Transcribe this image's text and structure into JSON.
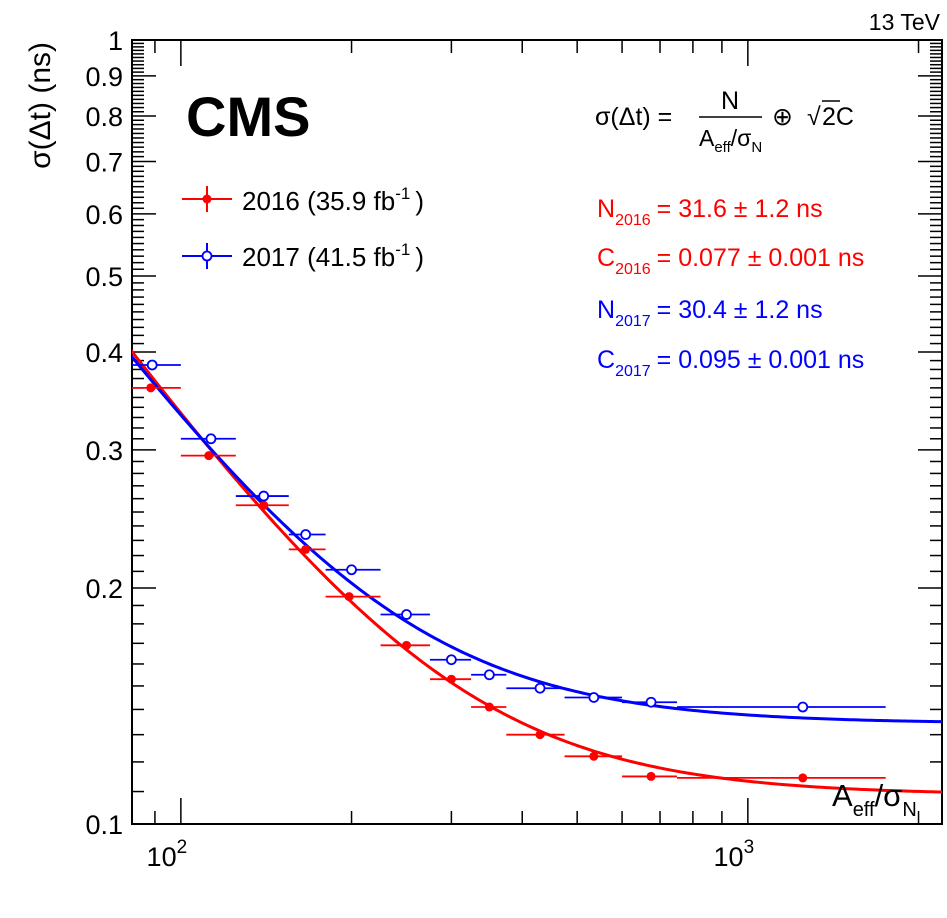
{
  "chart_data": {
    "type": "scatter",
    "title": "",
    "energy_label": "13 TeV",
    "experiment_label": "CMS",
    "xlabel": {
      "main": "A",
      "sub1": "eff",
      "mid": "/σ",
      "sub2": "N"
    },
    "ylabel": "σ(Δt) (ns)",
    "x_scale": "log",
    "y_scale": "log",
    "xlim": [
      82,
      2200
    ],
    "ylim": [
      0.1,
      1.0
    ],
    "x_ticks": [
      {
        "value": 100,
        "base": "10",
        "exp": "2"
      },
      {
        "value": 1000,
        "base": "10",
        "exp": "3"
      }
    ],
    "y_ticks": [
      {
        "value": 0.1,
        "label": "0.1"
      },
      {
        "value": 0.2,
        "label": "0.2"
      },
      {
        "value": 0.3,
        "label": "0.3"
      },
      {
        "value": 0.4,
        "label": "0.4"
      },
      {
        "value": 0.5,
        "label": "0.5"
      },
      {
        "value": 0.6,
        "label": "0.6"
      },
      {
        "value": 0.7,
        "label": "0.7"
      },
      {
        "value": 0.8,
        "label": "0.8"
      },
      {
        "value": 0.9,
        "label": "0.9"
      },
      {
        "value": 1.0,
        "label": "1"
      }
    ],
    "formula": {
      "lhs": "σ(Δt) =",
      "num": "N",
      "den_a": "A",
      "den_sub1": "eff",
      "den_mid": "/σ",
      "den_sub2": "N",
      "oplus": "⊕",
      "sqrt": "√",
      "rhs": "2C"
    },
    "fit_params": [
      {
        "name": "N",
        "sub": "2016",
        "value": "=   31.6 ± 1.2 ns",
        "color": "#ff0000"
      },
      {
        "name": "C",
        "sub": "2016",
        "value": "= 0.077 ± 0.001 ns",
        "color": "#ff0000"
      },
      {
        "name": "N",
        "sub": "2017",
        "value": "=   30.4 ± 1.2 ns",
        "color": "#0000ff"
      },
      {
        "name": "C",
        "sub": "2017",
        "value": "= 0.095 ± 0.001 ns",
        "color": "#0000ff"
      }
    ],
    "legend_position": "top-left",
    "series": [
      {
        "name": "2016",
        "legend_main": "2016 (35.9 fb",
        "legend_exp": "-1",
        "legend_close": ")",
        "color": "#ff0000",
        "marker": "filled-circle",
        "fit": {
          "N": 31.6,
          "C": 0.077
        },
        "points": [
          {
            "x": 88.5,
            "xlo": 82,
            "xhi": 100,
            "y": 0.36
          },
          {
            "x": 112,
            "xlo": 100,
            "xhi": 125,
            "y": 0.295
          },
          {
            "x": 140,
            "xlo": 125,
            "xhi": 155,
            "y": 0.255
          },
          {
            "x": 166,
            "xlo": 155,
            "xhi": 180,
            "y": 0.224
          },
          {
            "x": 198,
            "xlo": 180,
            "xhi": 225,
            "y": 0.195
          },
          {
            "x": 250,
            "xlo": 225,
            "xhi": 275,
            "y": 0.169
          },
          {
            "x": 300,
            "xlo": 275,
            "xhi": 325,
            "y": 0.153
          },
          {
            "x": 350,
            "xlo": 325,
            "xhi": 375,
            "y": 0.141
          },
          {
            "x": 430,
            "xlo": 375,
            "xhi": 475,
            "y": 0.13
          },
          {
            "x": 535,
            "xlo": 475,
            "xhi": 600,
            "y": 0.122
          },
          {
            "x": 675,
            "xlo": 600,
            "xhi": 750,
            "y": 0.115
          },
          {
            "x": 1250,
            "xlo": 750,
            "xhi": 1750,
            "y": 0.1145
          }
        ]
      },
      {
        "name": "2017",
        "legend_main": "2017 (41.5 fb",
        "legend_exp": "-1",
        "legend_close": ")",
        "color": "#0000ff",
        "marker": "open-circle",
        "fit": {
          "N": 30.4,
          "C": 0.095
        },
        "points": [
          {
            "x": 89,
            "xlo": 82,
            "xhi": 100,
            "y": 0.385
          },
          {
            "x": 113,
            "xlo": 100,
            "xhi": 125,
            "y": 0.31
          },
          {
            "x": 140,
            "xlo": 125,
            "xhi": 155,
            "y": 0.262
          },
          {
            "x": 166,
            "xlo": 155,
            "xhi": 180,
            "y": 0.234
          },
          {
            "x": 200,
            "xlo": 180,
            "xhi": 225,
            "y": 0.211
          },
          {
            "x": 250,
            "xlo": 225,
            "xhi": 275,
            "y": 0.185
          },
          {
            "x": 300,
            "xlo": 275,
            "xhi": 325,
            "y": 0.162
          },
          {
            "x": 350,
            "xlo": 325,
            "xhi": 375,
            "y": 0.155
          },
          {
            "x": 430,
            "xlo": 375,
            "xhi": 475,
            "y": 0.149
          },
          {
            "x": 535,
            "xlo": 475,
            "xhi": 600,
            "y": 0.145
          },
          {
            "x": 675,
            "xlo": 600,
            "xhi": 750,
            "y": 0.143
          },
          {
            "x": 1250,
            "xlo": 750,
            "xhi": 1750,
            "y": 0.141
          }
        ]
      }
    ]
  }
}
